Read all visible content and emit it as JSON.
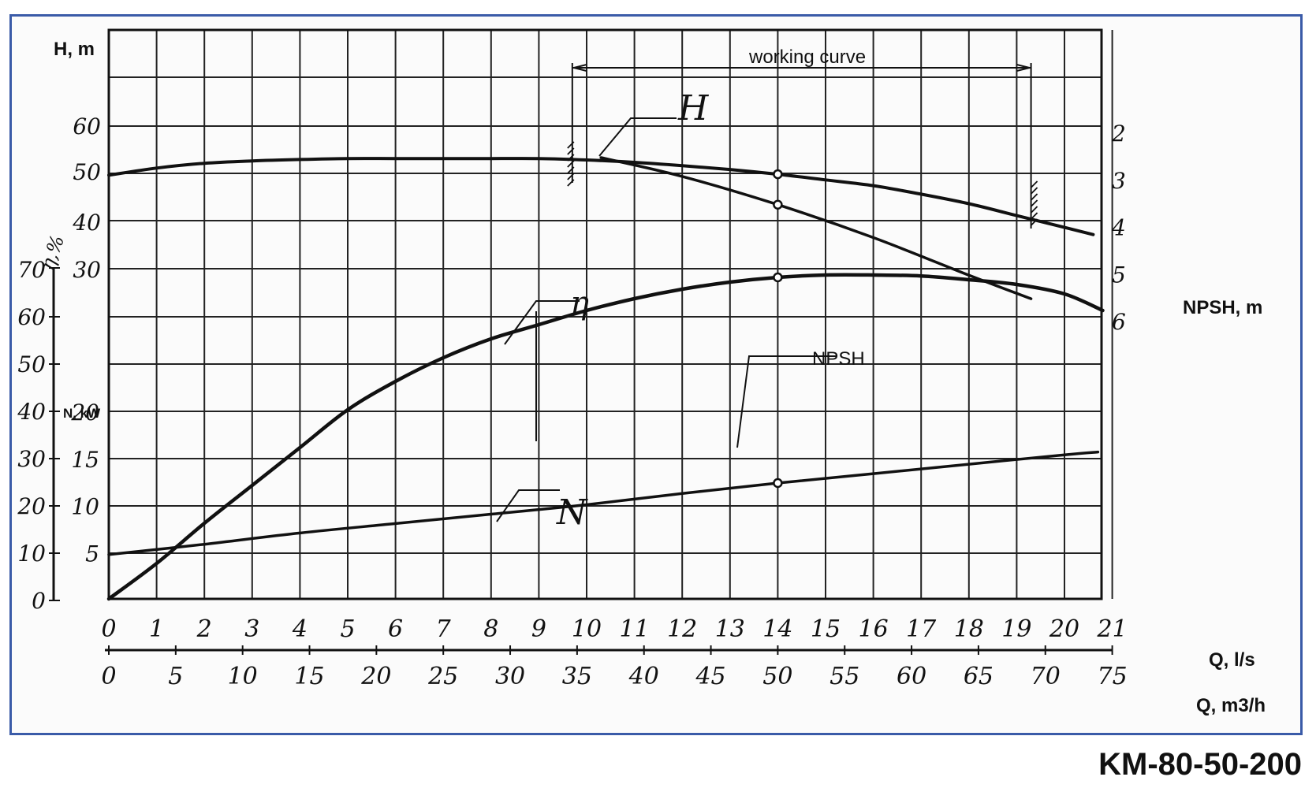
{
  "model": "KM-80-50-200",
  "chart_data": {
    "type": "line",
    "title": "",
    "axes": {
      "x_ls": {
        "label": "Q, l/s",
        "min": 0,
        "max": 21,
        "ticks": [
          "0",
          "1",
          "2",
          "3",
          "4",
          "5",
          "6",
          "7",
          "8",
          "9",
          "10",
          "11",
          "12",
          "13",
          "14",
          "15",
          "16",
          "17",
          "18",
          "19",
          "20",
          "21"
        ]
      },
      "x_m3h": {
        "label": "Q, m3/h",
        "min": 0,
        "max": 75,
        "ticks": [
          "0",
          "5",
          "10",
          "15",
          "20",
          "25",
          "30",
          "35",
          "40",
          "45",
          "50",
          "55",
          "60",
          "65",
          "70",
          "75"
        ]
      },
      "y_H": {
        "label": "H, m",
        "ticks": [
          "30",
          "40",
          "50",
          "60"
        ]
      },
      "y_eta": {
        "label": "η,%",
        "ticks": [
          "0",
          "10",
          "20",
          "30",
          "40",
          "50",
          "60",
          "70"
        ]
      },
      "y_N": {
        "label": "N, kW",
        "ticks": [
          "5",
          "10",
          "15",
          "20"
        ]
      },
      "y_npsh": {
        "label": "NPSH, m",
        "ticks": [
          "2",
          "3",
          "4",
          "5",
          "6"
        ]
      }
    },
    "grid": true,
    "working_range": {
      "label": "working curve",
      "q_from_ls": 9.7,
      "q_to_ls": 19.3
    },
    "series": [
      {
        "name": "H",
        "axis": "y_H",
        "x": [
          0,
          1,
          2,
          3,
          4,
          5,
          6,
          7,
          8,
          9,
          10,
          11,
          12,
          13,
          14,
          15,
          16,
          17,
          18,
          19,
          20,
          20.6
        ],
        "y": [
          50,
          51.5,
          52.5,
          53,
          53.3,
          53.5,
          53.5,
          53.5,
          53.5,
          53.5,
          53.2,
          52.7,
          52,
          51.2,
          50.2,
          49,
          47.8,
          46,
          44,
          41.5,
          39,
          37.5
        ]
      },
      {
        "name": "η",
        "axis": "y_eta",
        "x": [
          0,
          1,
          2,
          3,
          4,
          5,
          6,
          7,
          8,
          9,
          10,
          11,
          12,
          13,
          14,
          15,
          16,
          17,
          18,
          19,
          20,
          20.8
        ],
        "y": [
          0,
          7.5,
          16,
          24,
          32,
          40,
          46,
          51,
          55,
          58,
          61,
          63.5,
          65.5,
          67,
          68,
          68.5,
          68.5,
          68.3,
          67.5,
          66.5,
          64.5,
          61
        ]
      },
      {
        "name": "N",
        "axis": "y_N",
        "x": [
          0,
          2,
          4,
          6,
          8,
          10,
          12,
          14,
          16,
          18,
          20,
          20.7
        ],
        "y": [
          4.7,
          5.8,
          7,
          8,
          9,
          10,
          11.2,
          12.3,
          13.3,
          14.3,
          15.3,
          15.6
        ]
      },
      {
        "name": "NPSH",
        "axis": "y_npsh",
        "x": [
          10.3,
          12,
          14,
          16,
          18,
          19.3
        ],
        "y": [
          2.55,
          2.95,
          3.55,
          4.25,
          5.05,
          5.55
        ]
      }
    ],
    "marked_points": [
      {
        "series": "H",
        "x": 14,
        "y": 50.2
      },
      {
        "series": "η",
        "x": 14,
        "y": 68
      },
      {
        "series": "N",
        "x": 14,
        "y": 12.3
      },
      {
        "series": "NPSH",
        "x": 14,
        "y": 3.55
      }
    ]
  }
}
